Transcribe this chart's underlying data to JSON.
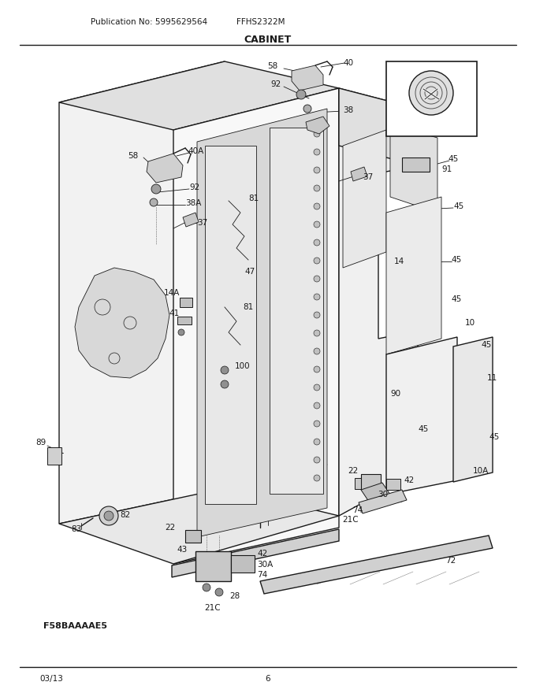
{
  "title": "CABINET",
  "pub_no": "Publication No: 5995629564",
  "model": "FFHS2322M",
  "date": "03/13",
  "page": "6",
  "label_bottom": "F58BAAAAE5",
  "bg_color": "#ffffff",
  "line_color": "#1a1a1a",
  "fig_w": 6.8,
  "fig_h": 8.8,
  "dpi": 100
}
